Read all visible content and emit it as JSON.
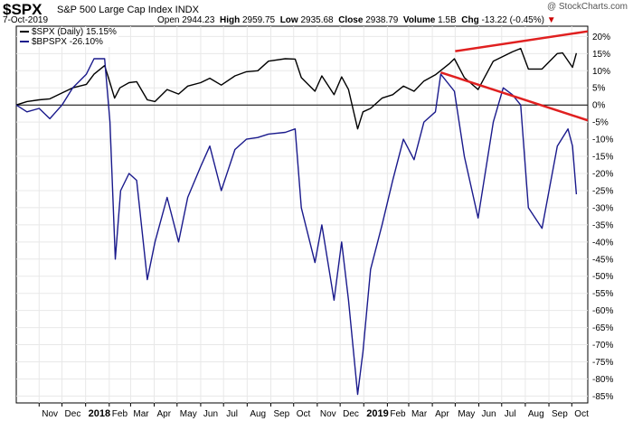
{
  "header": {
    "symbol": "$SPX",
    "description": "S&P 500 Large Cap Index  INDX",
    "date": "7-Oct-2019",
    "open_label": "Open",
    "open": "2944.23",
    "high_label": "High",
    "high": "2959.75",
    "low_label": "Low",
    "low": "2935.68",
    "close_label": "Close",
    "close": "2938.79",
    "volume_label": "Volume",
    "volume": "1.5B",
    "chg_label": "Chg",
    "chg": "-13.22 (-0.45%)",
    "chg_arrow": "▼",
    "credit": "@ StockCharts.com"
  },
  "colors": {
    "spx": "#000000",
    "bpspx": "#1a1a8c",
    "trendlines": "#e02020",
    "zero_line": "#000000",
    "grid": "#e8e8e8"
  },
  "chart_data": {
    "type": "line",
    "title": "",
    "ylim": [
      -87,
      23
    ],
    "yticks": [
      20,
      15,
      10,
      5,
      0,
      -5,
      -10,
      -15,
      -20,
      -25,
      -30,
      -35,
      -40,
      -45,
      -50,
      -55,
      -60,
      -65,
      -70,
      -75,
      -80,
      -85
    ],
    "ytick_labels": [
      "20%",
      "15%",
      "10%",
      "5%",
      "0%",
      "-5%",
      "-10%",
      "-15%",
      "-20%",
      "-25%",
      "-30%",
      "-35%",
      "-40%",
      "-45%",
      "-50%",
      "-55%",
      "-60%",
      "-65%",
      "-70%",
      "-75%",
      "-80%",
      "-85%"
    ],
    "x_labels": [
      "Nov",
      "Dec",
      "2018",
      "Feb",
      "Mar",
      "Apr",
      "May",
      "Jun",
      "Jul",
      "Aug",
      "Sep",
      "Oct",
      "Nov",
      "Dec",
      "2019",
      "Feb",
      "Mar",
      "Apr",
      "May",
      "Jun",
      "Jul",
      "Aug",
      "Sep",
      "Oct"
    ],
    "x_label_dates": [
      "2017-11-01",
      "2017-12-01",
      "2018-01-01",
      "2018-02-01",
      "2018-03-01",
      "2018-04-01",
      "2018-05-01",
      "2018-06-01",
      "2018-07-01",
      "2018-08-01",
      "2018-09-01",
      "2018-10-01",
      "2018-11-01",
      "2018-12-01",
      "2019-01-01",
      "2019-02-01",
      "2019-03-01",
      "2019-04-01",
      "2019-05-01",
      "2019-06-01",
      "2019-07-01",
      "2019-08-01",
      "2019-09-01",
      "2019-10-01"
    ],
    "year_labels": [
      "2018",
      "2019"
    ],
    "xlim": [
      "2017-10-02",
      "2019-10-22"
    ],
    "series": [
      {
        "name": "$SPX (Daily) 15.15%",
        "points": [
          [
            "2017-10-02",
            0
          ],
          [
            "2017-10-16",
            1.0
          ],
          [
            "2017-11-01",
            1.5
          ],
          [
            "2017-11-15",
            1.8
          ],
          [
            "2017-12-01",
            3.5
          ],
          [
            "2017-12-15",
            5.0
          ],
          [
            "2018-01-02",
            6.0
          ],
          [
            "2018-01-12",
            9.0
          ],
          [
            "2018-01-26",
            11.5
          ],
          [
            "2018-02-02",
            6.5
          ],
          [
            "2018-02-08",
            2.0
          ],
          [
            "2018-02-15",
            5.0
          ],
          [
            "2018-02-27",
            6.5
          ],
          [
            "2018-03-09",
            6.8
          ],
          [
            "2018-03-23",
            1.5
          ],
          [
            "2018-04-02",
            1.0
          ],
          [
            "2018-04-18",
            4.5
          ],
          [
            "2018-05-03",
            3.2
          ],
          [
            "2018-05-15",
            5.5
          ],
          [
            "2018-06-01",
            6.5
          ],
          [
            "2018-06-13",
            7.8
          ],
          [
            "2018-06-28",
            5.8
          ],
          [
            "2018-07-16",
            8.5
          ],
          [
            "2018-07-31",
            9.7
          ],
          [
            "2018-08-15",
            10.0
          ],
          [
            "2018-08-29",
            12.8
          ],
          [
            "2018-09-20",
            13.5
          ],
          [
            "2018-10-03",
            13.4
          ],
          [
            "2018-10-11",
            8.0
          ],
          [
            "2018-10-29",
            4.0
          ],
          [
            "2018-11-07",
            8.5
          ],
          [
            "2018-11-23",
            3.0
          ],
          [
            "2018-12-03",
            8.2
          ],
          [
            "2018-12-12",
            4.5
          ],
          [
            "2018-12-24",
            -7.0
          ],
          [
            "2018-12-31",
            -2.0
          ],
          [
            "2019-01-10",
            -1.0
          ],
          [
            "2019-01-25",
            2.0
          ],
          [
            "2019-02-08",
            3.0
          ],
          [
            "2019-02-22",
            5.5
          ],
          [
            "2019-03-08",
            4.0
          ],
          [
            "2019-03-21",
            7.0
          ],
          [
            "2019-04-05",
            8.8
          ],
          [
            "2019-04-23",
            12.0
          ],
          [
            "2019-04-30",
            13.5
          ],
          [
            "2019-05-13",
            8.0
          ],
          [
            "2019-05-31",
            4.5
          ],
          [
            "2019-06-20",
            12.8
          ],
          [
            "2019-07-15",
            15.5
          ],
          [
            "2019-07-26",
            16.5
          ],
          [
            "2019-08-05",
            10.5
          ],
          [
            "2019-08-23",
            10.5
          ],
          [
            "2019-09-12",
            15.0
          ],
          [
            "2019-09-19",
            15.2
          ],
          [
            "2019-10-02",
            11.0
          ],
          [
            "2019-10-07",
            15.15
          ]
        ]
      },
      {
        "name": "$BPSPX -26.10%",
        "points": [
          [
            "2017-10-02",
            0
          ],
          [
            "2017-10-16",
            -2.0
          ],
          [
            "2017-11-01",
            -1.0
          ],
          [
            "2017-11-15",
            -4.0
          ],
          [
            "2017-12-01",
            0
          ],
          [
            "2017-12-15",
            5.0
          ],
          [
            "2018-01-02",
            9.0
          ],
          [
            "2018-01-12",
            13.5
          ],
          [
            "2018-01-26",
            13.5
          ],
          [
            "2018-02-02",
            -5.0
          ],
          [
            "2018-02-09",
            -45.0
          ],
          [
            "2018-02-16",
            -25.0
          ],
          [
            "2018-02-27",
            -20.0
          ],
          [
            "2018-03-09",
            -22.0
          ],
          [
            "2018-03-23",
            -51.0
          ],
          [
            "2018-04-02",
            -40.0
          ],
          [
            "2018-04-18",
            -27.0
          ],
          [
            "2018-05-03",
            -40.0
          ],
          [
            "2018-05-15",
            -27.0
          ],
          [
            "2018-06-01",
            -18.0
          ],
          [
            "2018-06-13",
            -12.0
          ],
          [
            "2018-06-28",
            -25.0
          ],
          [
            "2018-07-16",
            -13.0
          ],
          [
            "2018-07-31",
            -10.0
          ],
          [
            "2018-08-15",
            -9.5
          ],
          [
            "2018-08-29",
            -8.5
          ],
          [
            "2018-09-20",
            -8.0
          ],
          [
            "2018-10-03",
            -7.0
          ],
          [
            "2018-10-11",
            -30.0
          ],
          [
            "2018-10-29",
            -46.0
          ],
          [
            "2018-11-07",
            -35.0
          ],
          [
            "2018-11-23",
            -57.0
          ],
          [
            "2018-12-03",
            -40.0
          ],
          [
            "2018-12-12",
            -57.0
          ],
          [
            "2018-12-24",
            -84.5
          ],
          [
            "2018-12-31",
            -72.0
          ],
          [
            "2019-01-10",
            -48.0
          ],
          [
            "2019-01-25",
            -35.0
          ],
          [
            "2019-02-08",
            -22.0
          ],
          [
            "2019-02-22",
            -10.0
          ],
          [
            "2019-03-08",
            -16.0
          ],
          [
            "2019-03-21",
            -5.0
          ],
          [
            "2019-04-05",
            -2.0
          ],
          [
            "2019-04-12",
            9.0
          ],
          [
            "2019-04-30",
            4.0
          ],
          [
            "2019-05-13",
            -15.0
          ],
          [
            "2019-05-31",
            -33.0
          ],
          [
            "2019-06-20",
            -5.0
          ],
          [
            "2019-07-03",
            5.0
          ],
          [
            "2019-07-15",
            3.0
          ],
          [
            "2019-07-26",
            0
          ],
          [
            "2019-08-05",
            -30.0
          ],
          [
            "2019-08-23",
            -36.0
          ],
          [
            "2019-09-12",
            -12.0
          ],
          [
            "2019-09-26",
            -7.0
          ],
          [
            "2019-10-02",
            -12.0
          ],
          [
            "2019-10-07",
            -26.1
          ]
        ]
      }
    ],
    "trendlines": [
      {
        "from": [
          "2019-05-01",
          15.7
        ],
        "to": [
          "2019-10-22",
          21.5
        ]
      },
      {
        "from": [
          "2019-04-12",
          9.5
        ],
        "to": [
          "2019-10-22",
          -4.5
        ]
      }
    ],
    "legend_position": "top-left",
    "grid": true,
    "zero_line": true
  }
}
